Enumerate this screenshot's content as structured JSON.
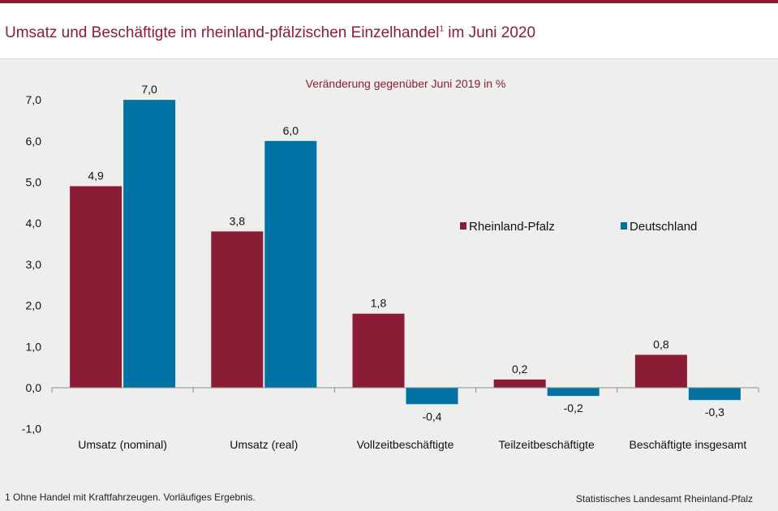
{
  "header": {
    "title_main": "Umsatz und Beschäftigte im rheinland-pfälzischen Einzelhandel",
    "title_sup": "1",
    "title_tail": " im Juni 2020"
  },
  "footer": {
    "footnote": "1 Ohne Handel mit Kraftfahrzeugen.  Vorläufiges  Ergebnis.",
    "source": "Statistisches Landesamt  Rheinland-Pfalz"
  },
  "colors": {
    "accent": "#8b1c35",
    "rheinland_pfalz": "#8b1c35",
    "deutschland": "#0072a3",
    "panel": "#eeeeec"
  },
  "chart_data": {
    "type": "bar",
    "subtitle": "Veränderung  gegenüber  Juni 2019 in %",
    "categories": [
      "Umsatz (nominal)",
      "Umsatz (real)",
      "Vollzeitbeschäftigte",
      "Teilzeitbeschäftigte",
      "Beschäftigte insgesamt"
    ],
    "series": [
      {
        "name": "Rheinland-Pfalz",
        "values": [
          4.9,
          3.8,
          1.8,
          0.2,
          0.8
        ],
        "labels": [
          "4,9",
          "3,8",
          "1,8",
          "0,2",
          "0,8"
        ]
      },
      {
        "name": "Deutschland",
        "values": [
          7.0,
          6.0,
          -0.4,
          -0.2,
          -0.3
        ],
        "labels": [
          "7,0",
          "6,0",
          "-0,4",
          "-0,2",
          "-0,3"
        ]
      }
    ],
    "ylim": [
      -1,
      7
    ],
    "yticks": [
      7,
      6,
      5,
      4,
      3,
      2,
      1,
      0,
      -1
    ],
    "ytick_labels": [
      "7,0",
      "6,0",
      "5,0",
      "4,0",
      "3,0",
      "2,0",
      "1,0",
      "0,0",
      "-1,0"
    ],
    "grid": false,
    "legend": "right"
  }
}
